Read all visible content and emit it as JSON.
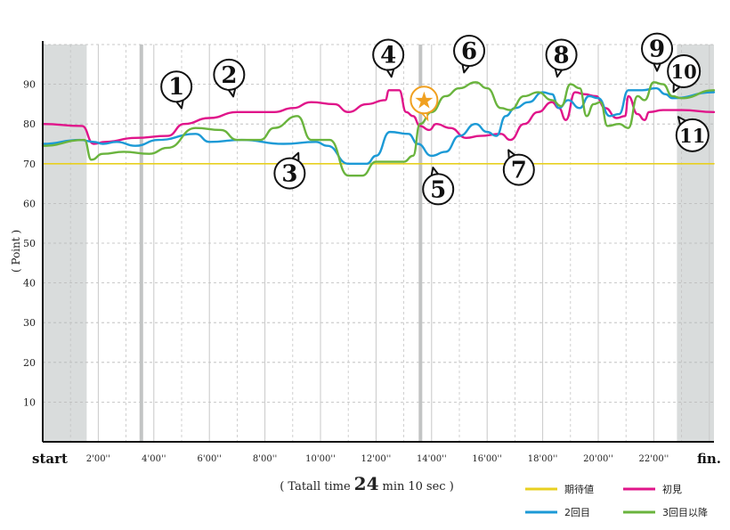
{
  "chart_data": {
    "type": "line",
    "ylabel": "( Point )",
    "ylim": [
      0,
      100
    ],
    "yticks": [
      10,
      20,
      30,
      40,
      50,
      60,
      70,
      80,
      90
    ],
    "xlim_seconds": [
      0,
      1450
    ],
    "x_start_label": "start",
    "x_end_label": "fin.",
    "xticks": [
      {
        "label": "2'00''",
        "seconds": 120
      },
      {
        "label": "4'00''",
        "seconds": 240
      },
      {
        "label": "6'00''",
        "seconds": 360
      },
      {
        "label": "8'00''",
        "seconds": 480
      },
      {
        "label": "10'00''",
        "seconds": 600
      },
      {
        "label": "12'00''",
        "seconds": 720
      },
      {
        "label": "14'00''",
        "seconds": 840
      },
      {
        "label": "16'00''",
        "seconds": 960
      },
      {
        "label": "18'00''",
        "seconds": 1080
      },
      {
        "label": "20'00''",
        "seconds": 1200
      },
      {
        "label": "22'00''",
        "seconds": 1320
      }
    ],
    "total_time": {
      "prefix": "( Tatall time",
      "minutes": "24",
      "min_label": "min",
      "seconds": "10",
      "sec_label": "sec )"
    },
    "shaded_regions": [
      [
        0,
        95
      ],
      [
        1370,
        1450
      ]
    ],
    "highlight_lines_seconds": [
      213,
      816
    ],
    "series": [
      {
        "name": "期待値",
        "color": "#e8d020",
        "points": [
          [
            0,
            70
          ],
          [
            1450,
            70
          ]
        ]
      },
      {
        "name": "初見",
        "color": "#e0158a",
        "points": [
          [
            0,
            80
          ],
          [
            85,
            79.5
          ],
          [
            110,
            75
          ],
          [
            135,
            75.5
          ],
          [
            200,
            76.5
          ],
          [
            270,
            77
          ],
          [
            305,
            80
          ],
          [
            360,
            81.5
          ],
          [
            420,
            83
          ],
          [
            500,
            83
          ],
          [
            540,
            84
          ],
          [
            580,
            85.5
          ],
          [
            630,
            85
          ],
          [
            660,
            83
          ],
          [
            700,
            85
          ],
          [
            740,
            86
          ],
          [
            748,
            88.5
          ],
          [
            770,
            88.5
          ],
          [
            785,
            83
          ],
          [
            800,
            82
          ],
          [
            815,
            79.5
          ],
          [
            835,
            78.5
          ],
          [
            850,
            80
          ],
          [
            880,
            79
          ],
          [
            915,
            76.5
          ],
          [
            945,
            77
          ],
          [
            990,
            77.5
          ],
          [
            1010,
            76
          ],
          [
            1040,
            80
          ],
          [
            1070,
            83
          ],
          [
            1100,
            85.5
          ],
          [
            1115,
            84
          ],
          [
            1130,
            81
          ],
          [
            1150,
            88
          ],
          [
            1170,
            87.5
          ],
          [
            1195,
            87
          ],
          [
            1215,
            84
          ],
          [
            1240,
            81.5
          ],
          [
            1258,
            82
          ],
          [
            1265,
            87
          ],
          [
            1285,
            82.5
          ],
          [
            1300,
            81
          ],
          [
            1310,
            83
          ],
          [
            1340,
            83.5
          ],
          [
            1380,
            83.5
          ],
          [
            1450,
            83
          ]
        ]
      },
      {
        "name": "2回目",
        "color": "#1c9ad6",
        "points": [
          [
            0,
            75
          ],
          [
            80,
            76
          ],
          [
            110,
            75.5
          ],
          [
            130,
            75
          ],
          [
            160,
            75.5
          ],
          [
            200,
            74.5
          ],
          [
            250,
            76
          ],
          [
            330,
            77.5
          ],
          [
            360,
            75.5
          ],
          [
            430,
            76
          ],
          [
            520,
            75
          ],
          [
            590,
            75.5
          ],
          [
            615,
            74.5
          ],
          [
            660,
            70
          ],
          [
            700,
            70
          ],
          [
            720,
            72
          ],
          [
            750,
            78
          ],
          [
            790,
            77.5
          ],
          [
            810,
            75
          ],
          [
            840,
            72
          ],
          [
            870,
            73
          ],
          [
            900,
            77
          ],
          [
            935,
            80
          ],
          [
            960,
            78
          ],
          [
            980,
            77
          ],
          [
            1000,
            82
          ],
          [
            1020,
            84
          ],
          [
            1050,
            85.5
          ],
          [
            1080,
            88
          ],
          [
            1100,
            87.5
          ],
          [
            1115,
            84
          ],
          [
            1135,
            86
          ],
          [
            1160,
            84
          ],
          [
            1180,
            87
          ],
          [
            1200,
            86.5
          ],
          [
            1225,
            82
          ],
          [
            1245,
            82.5
          ],
          [
            1265,
            88.5
          ],
          [
            1295,
            88.5
          ],
          [
            1325,
            89
          ],
          [
            1345,
            87.5
          ],
          [
            1360,
            86.5
          ],
          [
            1450,
            88
          ]
        ]
      },
      {
        "name": "3回目以降",
        "color": "#6ab43e",
        "points": [
          [
            0,
            74.5
          ],
          [
            90,
            76
          ],
          [
            105,
            71
          ],
          [
            130,
            72.5
          ],
          [
            175,
            73
          ],
          [
            230,
            72.5
          ],
          [
            270,
            74
          ],
          [
            330,
            79
          ],
          [
            385,
            78.5
          ],
          [
            420,
            76
          ],
          [
            470,
            76
          ],
          [
            500,
            79
          ],
          [
            550,
            82
          ],
          [
            580,
            76
          ],
          [
            620,
            76
          ],
          [
            660,
            67
          ],
          [
            690,
            67
          ],
          [
            720,
            70.5
          ],
          [
            780,
            70.5
          ],
          [
            800,
            72
          ],
          [
            815,
            80
          ],
          [
            840,
            83
          ],
          [
            870,
            87
          ],
          [
            900,
            89
          ],
          [
            935,
            90.5
          ],
          [
            960,
            89
          ],
          [
            990,
            84
          ],
          [
            1010,
            83.5
          ],
          [
            1040,
            87
          ],
          [
            1070,
            88
          ],
          [
            1100,
            86
          ],
          [
            1120,
            84.5
          ],
          [
            1140,
            90
          ],
          [
            1160,
            89
          ],
          [
            1175,
            82
          ],
          [
            1190,
            85
          ],
          [
            1205,
            85.5
          ],
          [
            1220,
            79.5
          ],
          [
            1245,
            80
          ],
          [
            1265,
            79
          ],
          [
            1285,
            87
          ],
          [
            1300,
            86
          ],
          [
            1320,
            90.5
          ],
          [
            1340,
            90
          ],
          [
            1360,
            87
          ],
          [
            1380,
            86.5
          ],
          [
            1450,
            88.5
          ]
        ]
      }
    ],
    "legend": {
      "position": "bottom-right",
      "entries": [
        "期待値",
        "初見",
        "2回目",
        "3回目以降"
      ]
    },
    "annotations": [
      {
        "label": "1",
        "time_s": 308,
        "value": 80
      },
      {
        "label": "2",
        "time_s": 418,
        "value": 83
      },
      {
        "label": "3",
        "time_s": 568,
        "value": 77
      },
      {
        "label": "4",
        "time_s": 758,
        "value": 88
      },
      {
        "label": "5",
        "time_s": 835,
        "value": 73
      },
      {
        "label": "6",
        "time_s": 902,
        "value": 89
      },
      {
        "label": "7",
        "time_s": 990,
        "value": 77
      },
      {
        "label": "8",
        "time_s": 1105,
        "value": 88
      },
      {
        "label": "9",
        "time_s": 1327,
        "value": 90
      },
      {
        "label": "10",
        "time_s": 1358,
        "value": 87
      },
      {
        "label": "11",
        "time_s": 1365,
        "value": 83
      }
    ],
    "star_marker": {
      "symbol": "★",
      "time_s": 820,
      "value": 82
    }
  }
}
